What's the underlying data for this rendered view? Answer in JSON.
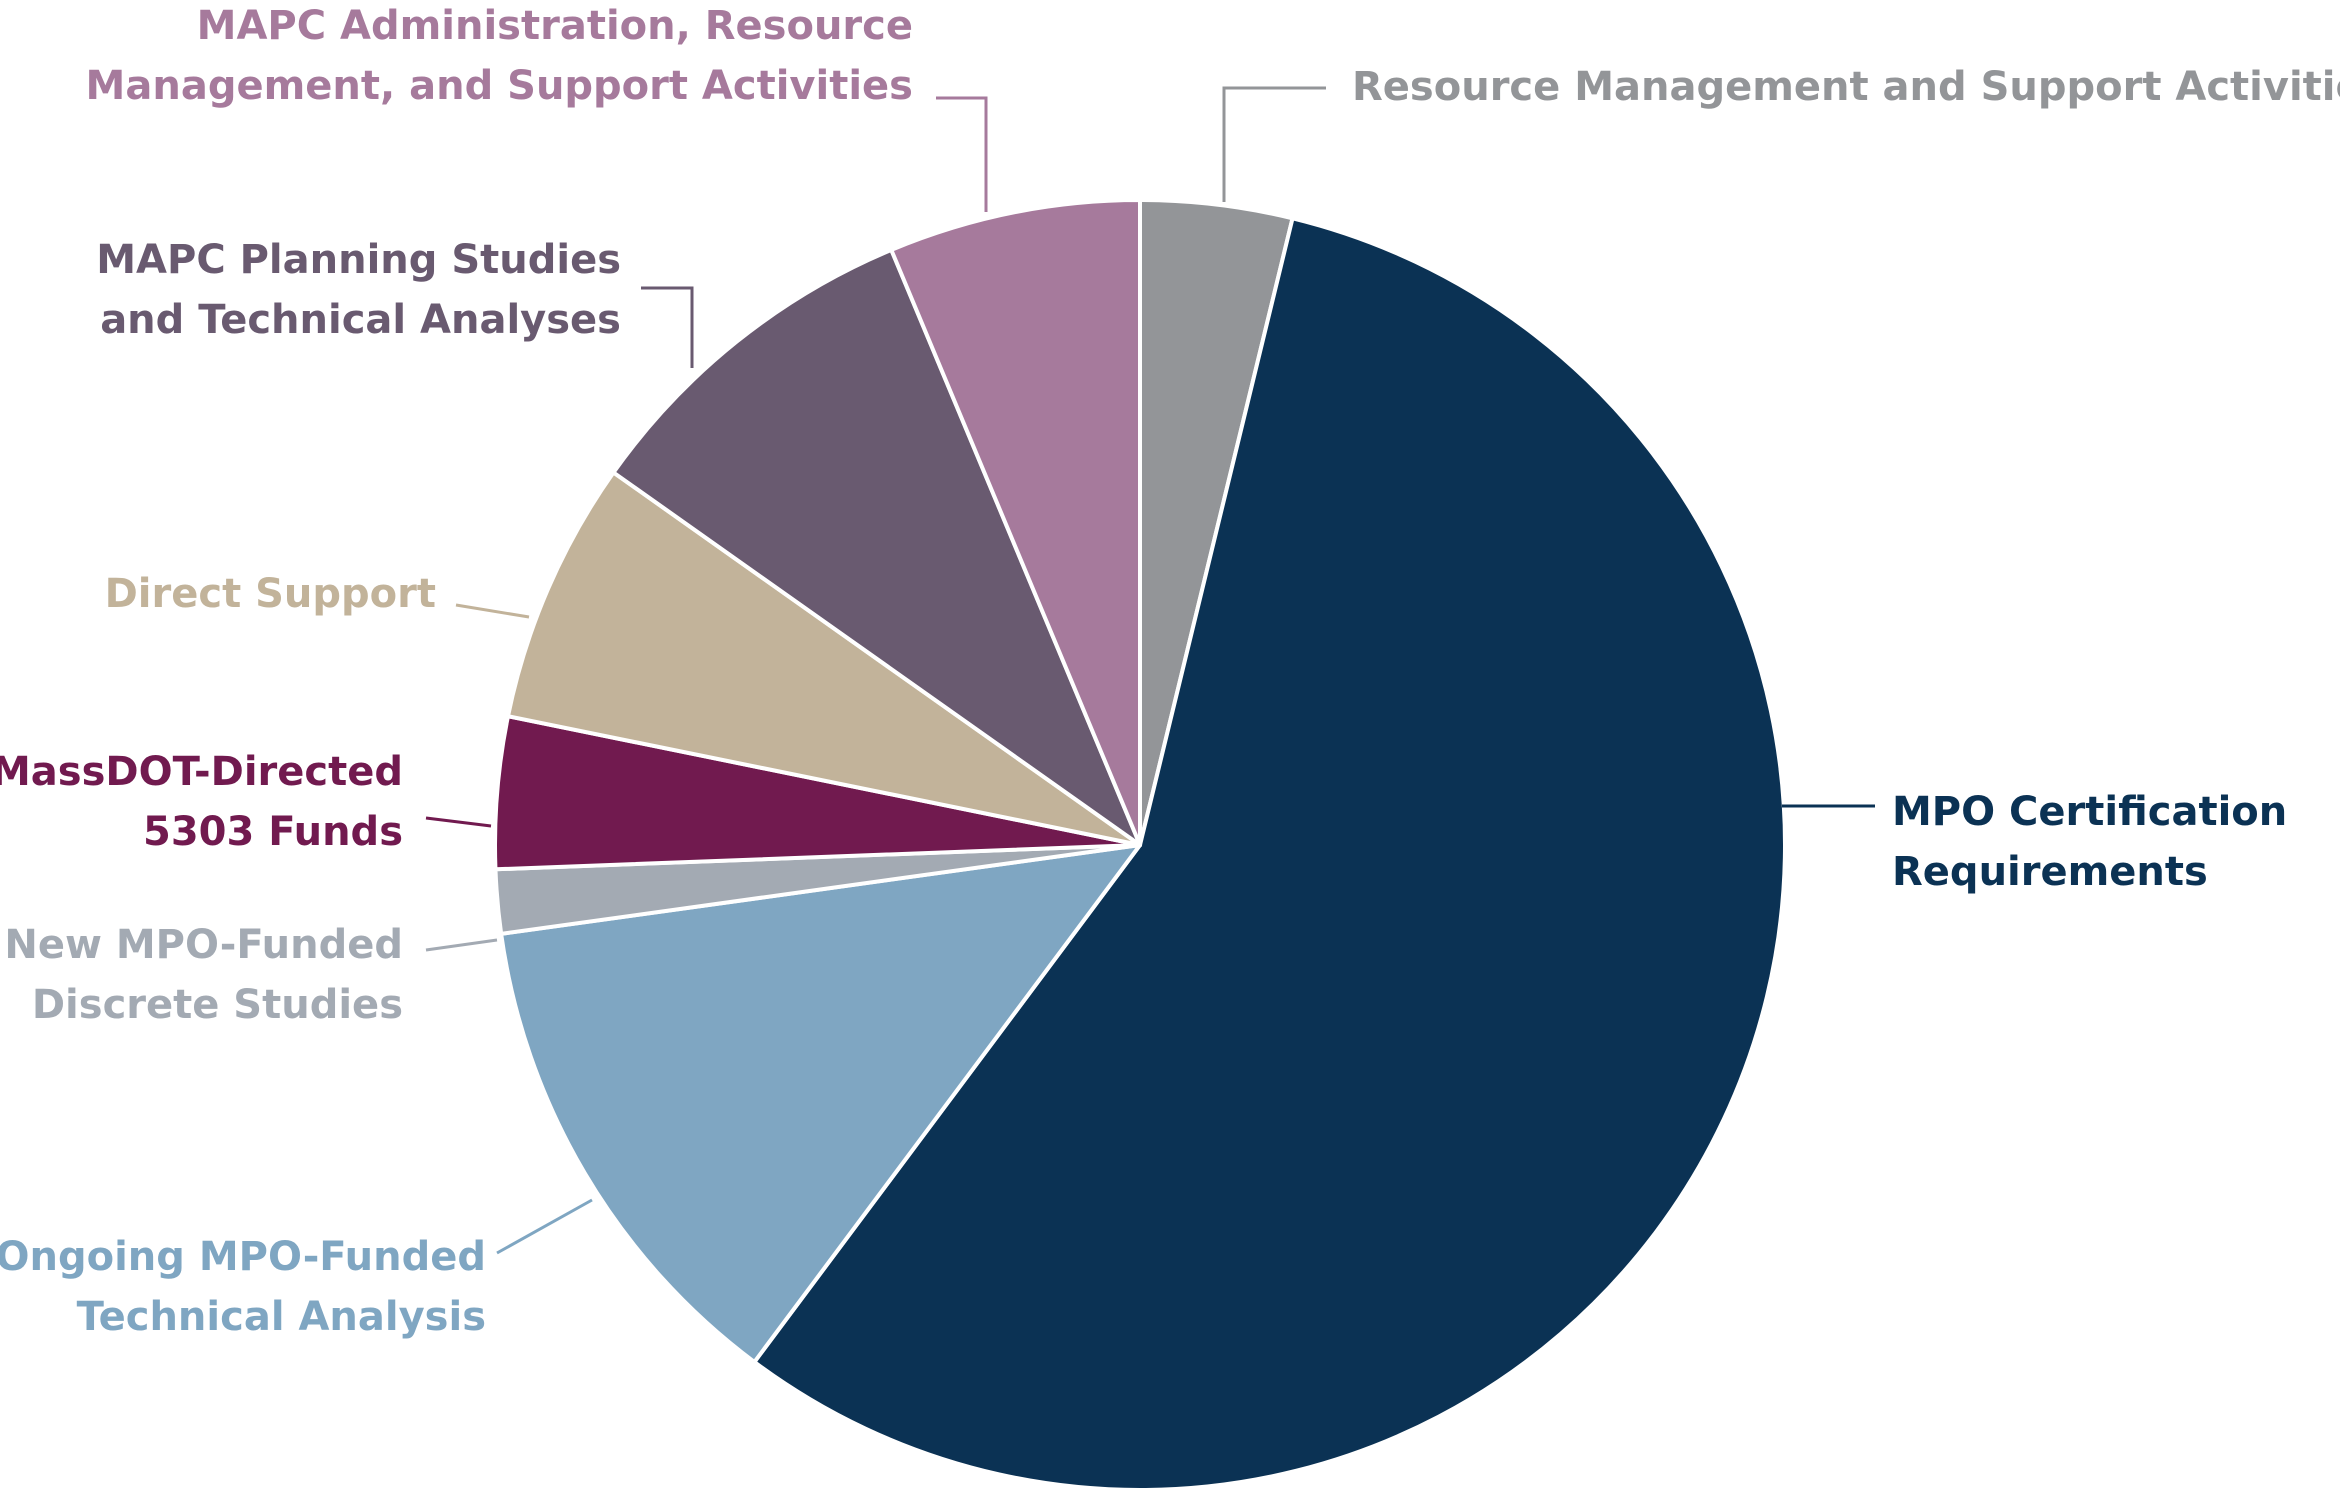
{
  "chart_data": {
    "type": "pie",
    "title": "",
    "legend": "none",
    "start_angle_deg": 0,
    "direction": "clockwise",
    "slices": [
      {
        "name": "Resource Management and Support Activities",
        "label_lines": [
          "Resource Management and Support Activities"
        ],
        "value": 3.8,
        "color": "#939598",
        "label_color": "#939598"
      },
      {
        "name": "MPO Certification Requirements",
        "label_lines": [
          "MPO Certification",
          "Requirements"
        ],
        "value": 56.4,
        "color": "#0b3254",
        "label_color": "#0b3254"
      },
      {
        "name": "Ongoing MPO-Funded Technical Analysis",
        "label_lines": [
          "Ongoing MPO-Funded",
          "Technical Analysis"
        ],
        "value": 12.6,
        "color": "#7fa6c2",
        "label_color": "#7fa6c2"
      },
      {
        "name": "New MPO-Funded Discrete Studies",
        "label_lines": [
          "New MPO-Funded",
          "Discrete Studies"
        ],
        "value": 1.6,
        "color": "#a3aab3",
        "label_color": "#a3aab3"
      },
      {
        "name": "MassDOT-Directed 5303 Funds",
        "label_lines": [
          "MassDOT-Directed",
          "5303 Funds"
        ],
        "value": 3.8,
        "color": "#711a4f",
        "label_color": "#711a4f"
      },
      {
        "name": "Direct Support",
        "label_lines": [
          "Direct Support"
        ],
        "value": 6.6,
        "color": "#c2b39a",
        "label_color": "#c2b39a"
      },
      {
        "name": "MAPC Planning Studies and Technical Analyses",
        "label_lines": [
          "MAPC Planning Studies",
          "and Technical Analyses"
        ],
        "value": 8.9,
        "color": "#695a70",
        "label_color": "#695a70"
      },
      {
        "name": "MAPC Administration, Resource Management, and Support Activities",
        "label_lines": [
          "MAPC Administration, Resource",
          "Management, and Support Activities"
        ],
        "value": 6.3,
        "color": "#a67a9c",
        "label_color": "#a67a9c"
      }
    ]
  }
}
